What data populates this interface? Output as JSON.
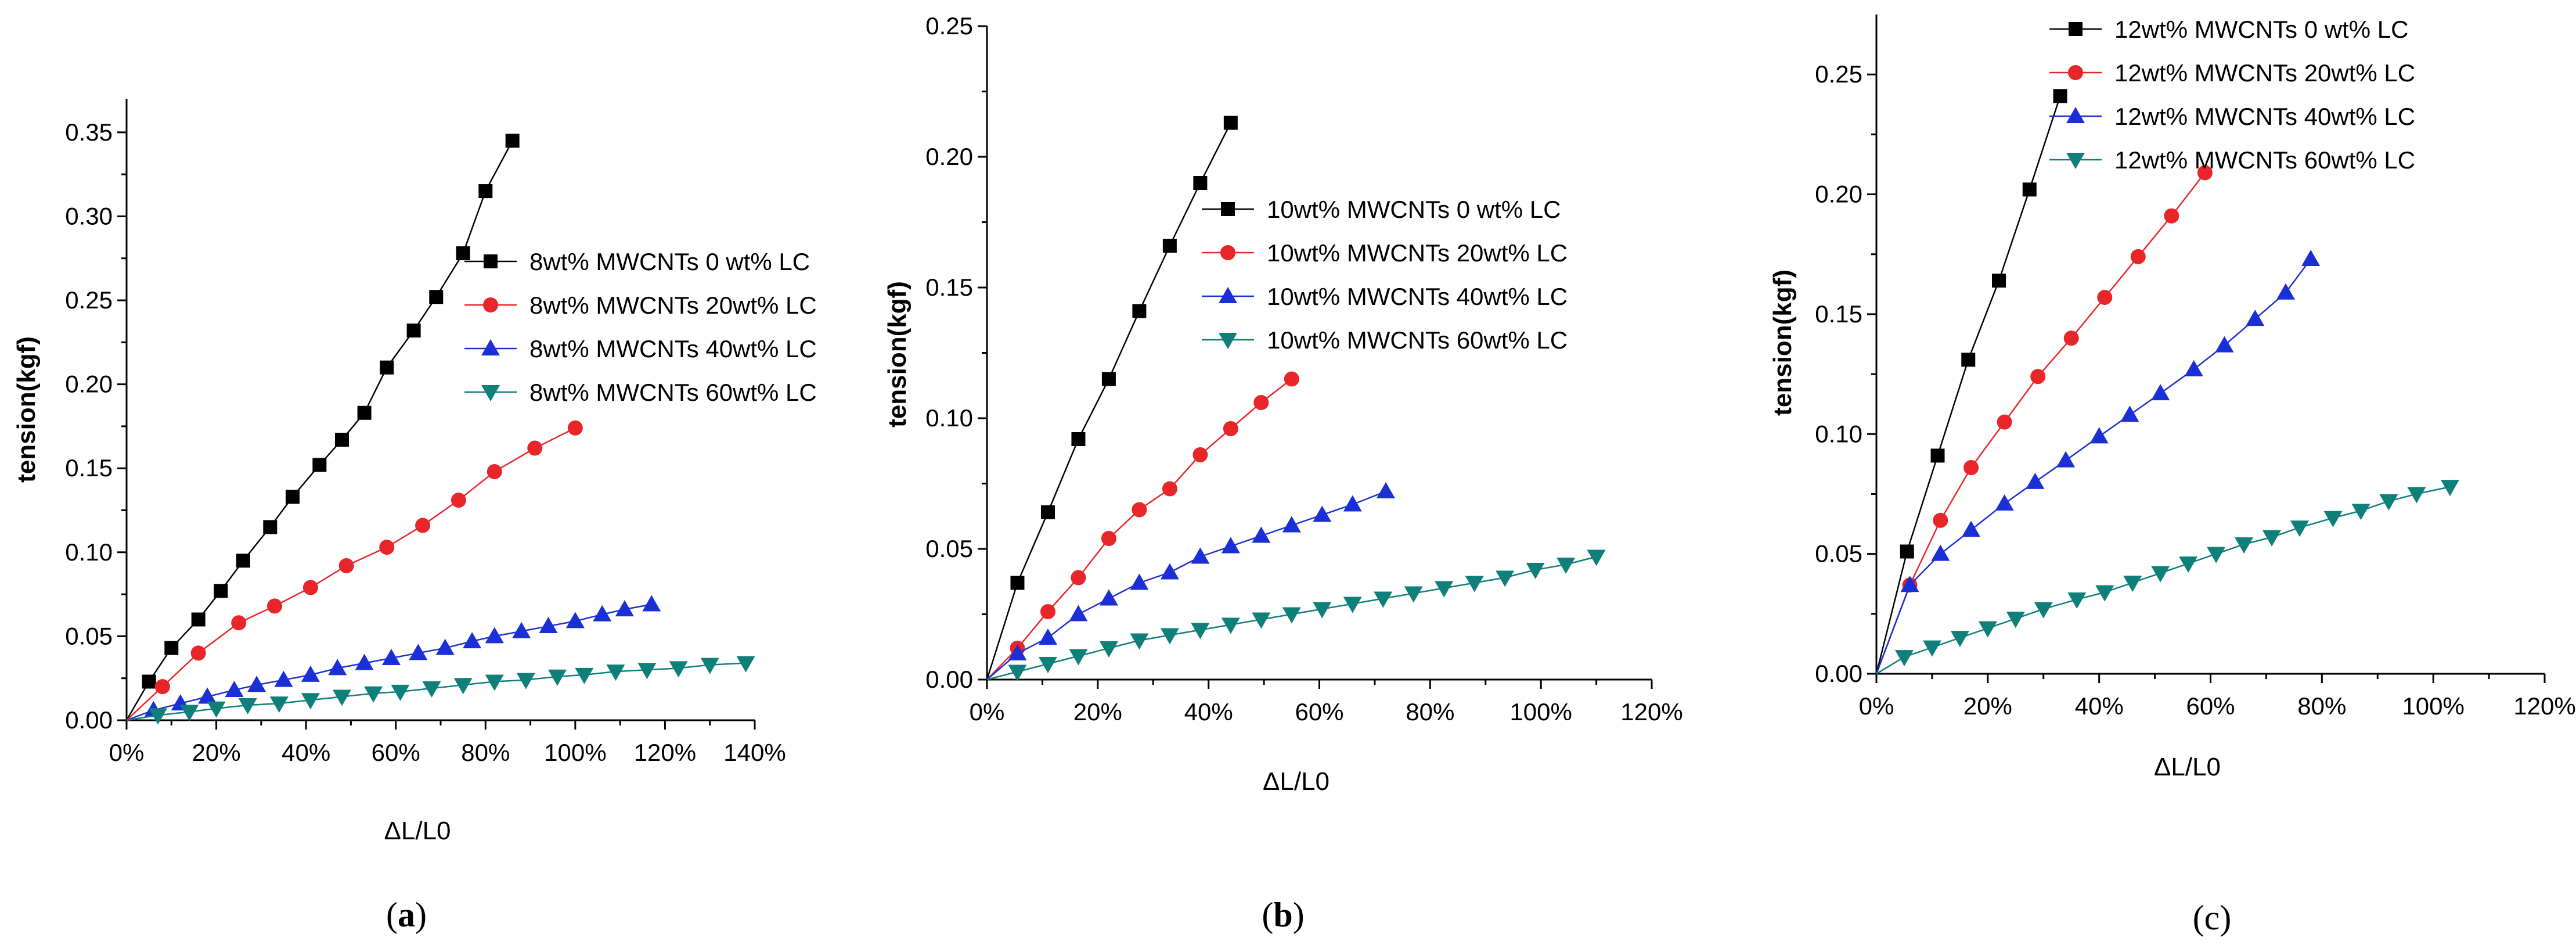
{
  "chart_data": [
    {
      "type": "line",
      "panel": "a",
      "caption_open": "(",
      "caption_letter": "a",
      "caption_close": ")",
      "caption_letter_bold": true,
      "xlabel": "ΔL/L0",
      "ylabel": "tension(kgf)",
      "xlim": [
        0,
        1.4
      ],
      "ylim": [
        0,
        0.37
      ],
      "xticks": [
        0,
        0.2,
        0.4,
        0.6,
        0.8,
        1.0,
        1.2,
        1.4
      ],
      "xtick_labels": [
        "0%",
        "20%",
        "40%",
        "60%",
        "80%",
        "100%",
        "120%",
        "140%"
      ],
      "yticks": [
        0,
        0.05,
        0.1,
        0.15,
        0.2,
        0.25,
        0.3,
        0.35
      ],
      "ytick_labels": [
        "0.00",
        "0.05",
        "0.10",
        "0.15",
        "0.20",
        "0.25",
        "0.30",
        "0.35"
      ],
      "legend_position": "center-right",
      "series": [
        {
          "name": "8wt% MWCNTs 0  wt% LC",
          "color": "#000000",
          "marker": "square",
          "x": [
            0,
            0.05,
            0.1,
            0.16,
            0.21,
            0.26,
            0.32,
            0.37,
            0.43,
            0.48,
            0.53,
            0.58,
            0.64,
            0.69,
            0.75,
            0.8,
            0.86
          ],
          "y": [
            0,
            0.023,
            0.043,
            0.06,
            0.077,
            0.095,
            0.115,
            0.133,
            0.152,
            0.167,
            0.183,
            0.21,
            0.232,
            0.252,
            0.278,
            0.315,
            0.345
          ]
        },
        {
          "name": "8wt% MWCNTs 20wt% LC",
          "color": "#e8262a",
          "marker": "circle",
          "x": [
            0,
            0.08,
            0.16,
            0.25,
            0.33,
            0.41,
            0.49,
            0.58,
            0.66,
            0.74,
            0.82,
            0.91,
            1.0
          ],
          "y": [
            0,
            0.02,
            0.04,
            0.058,
            0.068,
            0.079,
            0.092,
            0.103,
            0.116,
            0.131,
            0.148,
            0.162,
            0.174
          ]
        },
        {
          "name": "8wt% MWCNTs 40wt% LC",
          "color": "#1b2fd6",
          "marker": "triangle-up",
          "x": [
            0,
            0.06,
            0.12,
            0.18,
            0.24,
            0.29,
            0.35,
            0.41,
            0.47,
            0.53,
            0.59,
            0.65,
            0.71,
            0.77,
            0.82,
            0.88,
            0.94,
            1.0,
            1.06,
            1.11,
            1.17
          ],
          "y": [
            0,
            0.006,
            0.01,
            0.014,
            0.018,
            0.021,
            0.024,
            0.027,
            0.031,
            0.034,
            0.037,
            0.04,
            0.043,
            0.047,
            0.05,
            0.053,
            0.056,
            0.059,
            0.063,
            0.066,
            0.069
          ]
        },
        {
          "name": "8wt% MWCNTs 60wt% LC",
          "color": "#0f7f7a",
          "marker": "triangle-down",
          "x": [
            0,
            0.07,
            0.14,
            0.2,
            0.27,
            0.34,
            0.41,
            0.48,
            0.55,
            0.61,
            0.68,
            0.75,
            0.82,
            0.89,
            0.96,
            1.02,
            1.09,
            1.16,
            1.23,
            1.3,
            1.38
          ],
          "y": [
            0,
            0.003,
            0.005,
            0.007,
            0.009,
            0.01,
            0.012,
            0.014,
            0.016,
            0.017,
            0.019,
            0.021,
            0.023,
            0.024,
            0.026,
            0.027,
            0.029,
            0.03,
            0.031,
            0.033,
            0.034
          ]
        }
      ]
    },
    {
      "type": "line",
      "panel": "b",
      "caption_open": "(",
      "caption_letter": "b",
      "caption_close": ")",
      "caption_letter_bold": true,
      "xlabel": "ΔL/L0",
      "ylabel": "tension(kgf)",
      "xlim": [
        0,
        1.2
      ],
      "ylim": [
        0,
        0.25
      ],
      "xticks": [
        0,
        0.2,
        0.4,
        0.6,
        0.8,
        1.0,
        1.2
      ],
      "xtick_labels": [
        "0%",
        "20%",
        "40%",
        "60%",
        "80%",
        "100%",
        "120%"
      ],
      "yticks": [
        0,
        0.05,
        0.1,
        0.15,
        0.2,
        0.25
      ],
      "ytick_labels": [
        "0.00",
        "0.05",
        "0.10",
        "0.15",
        "0.20",
        "0.25"
      ],
      "legend_position": "center-right",
      "series": [
        {
          "name": "10wt% MWCNTs 0  wt% LC",
          "color": "#000000",
          "marker": "square",
          "x": [
            0,
            0.055,
            0.11,
            0.165,
            0.22,
            0.275,
            0.33,
            0.385,
            0.44
          ],
          "y": [
            0,
            0.037,
            0.064,
            0.092,
            0.115,
            0.141,
            0.166,
            0.19,
            0.213
          ]
        },
        {
          "name": "10wt% MWCNTs 20wt% LC",
          "color": "#e8262a",
          "marker": "circle",
          "x": [
            0,
            0.055,
            0.11,
            0.165,
            0.22,
            0.275,
            0.33,
            0.385,
            0.44,
            0.495,
            0.55
          ],
          "y": [
            0,
            0.012,
            0.026,
            0.039,
            0.054,
            0.065,
            0.073,
            0.086,
            0.096,
            0.106,
            0.115
          ]
        },
        {
          "name": "10wt% MWCNTs 40wt% LC",
          "color": "#1b2fd6",
          "marker": "triangle-up",
          "x": [
            0,
            0.055,
            0.11,
            0.165,
            0.22,
            0.275,
            0.33,
            0.385,
            0.44,
            0.495,
            0.55,
            0.605,
            0.66,
            0.72
          ],
          "y": [
            0,
            0.01,
            0.016,
            0.025,
            0.031,
            0.037,
            0.041,
            0.047,
            0.051,
            0.055,
            0.059,
            0.063,
            0.067,
            0.072
          ]
        },
        {
          "name": "10wt% MWCNTs 60wt% LC",
          "color": "#0f7f7a",
          "marker": "triangle-down",
          "x": [
            0,
            0.055,
            0.11,
            0.165,
            0.22,
            0.275,
            0.33,
            0.385,
            0.44,
            0.495,
            0.55,
            0.605,
            0.66,
            0.715,
            0.77,
            0.825,
            0.88,
            0.935,
            0.99,
            1.045,
            1.1
          ],
          "y": [
            0,
            0.003,
            0.006,
            0.009,
            0.012,
            0.015,
            0.017,
            0.019,
            0.021,
            0.023,
            0.025,
            0.027,
            0.029,
            0.031,
            0.033,
            0.035,
            0.037,
            0.039,
            0.042,
            0.044,
            0.047
          ]
        }
      ]
    },
    {
      "type": "line",
      "panel": "c",
      "caption_open": "(",
      "caption_letter": "c",
      "caption_close": ")",
      "caption_letter_bold": false,
      "xlabel": "ΔL/L0",
      "ylabel": "tension(kgf)",
      "xlim": [
        0,
        1.2
      ],
      "ylim": [
        0,
        0.275
      ],
      "xticks": [
        0,
        0.2,
        0.4,
        0.6,
        0.8,
        1.0,
        1.2
      ],
      "xtick_labels": [
        "0%",
        "20%",
        "40%",
        "60%",
        "80%",
        "100%",
        "120%"
      ],
      "yticks": [
        0,
        0.05,
        0.1,
        0.15,
        0.2,
        0.25
      ],
      "ytick_labels": [
        "0.00",
        "0.05",
        "0.10",
        "0.15",
        "0.20",
        "0.25"
      ],
      "legend_position": "top-right",
      "series": [
        {
          "name": "12wt% MWCNTs 0  wt% LC",
          "color": "#000000",
          "marker": "square",
          "x": [
            0,
            0.055,
            0.11,
            0.165,
            0.22,
            0.275,
            0.33
          ],
          "y": [
            0,
            0.051,
            0.091,
            0.131,
            0.164,
            0.202,
            0.241
          ]
        },
        {
          "name": "12wt% MWCNTs 20wt% LC",
          "color": "#e8262a",
          "marker": "circle",
          "x": [
            0,
            0.06,
            0.115,
            0.17,
            0.23,
            0.29,
            0.35,
            0.41,
            0.47,
            0.53,
            0.59
          ],
          "y": [
            0,
            0.037,
            0.064,
            0.086,
            0.105,
            0.124,
            0.14,
            0.157,
            0.174,
            0.191,
            0.209
          ]
        },
        {
          "name": "12wt% MWCNTs 40wt% LC",
          "color": "#1b2fd6",
          "marker": "triangle-up",
          "x": [
            0,
            0.06,
            0.115,
            0.17,
            0.23,
            0.285,
            0.34,
            0.4,
            0.455,
            0.51,
            0.57,
            0.625,
            0.68,
            0.735,
            0.78
          ],
          "y": [
            0,
            0.037,
            0.05,
            0.06,
            0.071,
            0.08,
            0.089,
            0.099,
            0.108,
            0.117,
            0.127,
            0.137,
            0.148,
            0.159,
            0.173
          ]
        },
        {
          "name": "12wt% MWCNTs 60wt% LC",
          "color": "#0f7f7a",
          "marker": "triangle-down",
          "x": [
            0,
            0.05,
            0.1,
            0.15,
            0.2,
            0.25,
            0.3,
            0.36,
            0.41,
            0.46,
            0.51,
            0.56,
            0.61,
            0.66,
            0.71,
            0.76,
            0.82,
            0.87,
            0.92,
            0.97,
            1.03
          ],
          "y": [
            0,
            0.007,
            0.011,
            0.015,
            0.019,
            0.023,
            0.027,
            0.031,
            0.034,
            0.038,
            0.042,
            0.046,
            0.05,
            0.054,
            0.057,
            0.061,
            0.065,
            0.068,
            0.072,
            0.075,
            0.078
          ]
        }
      ]
    }
  ]
}
